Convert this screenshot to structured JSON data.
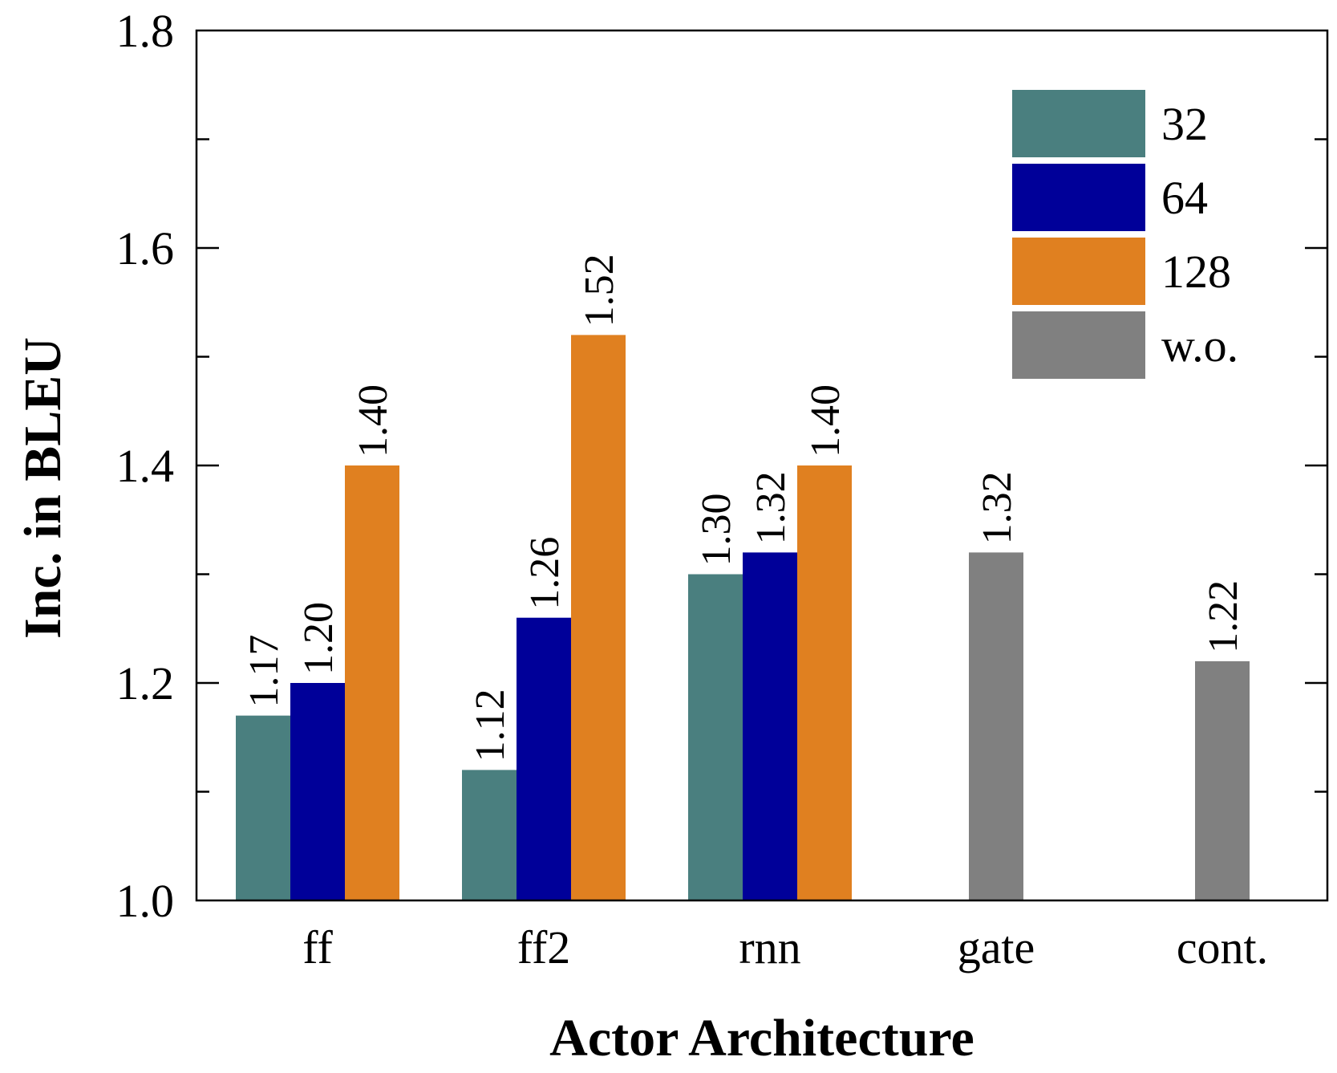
{
  "chart_data": {
    "type": "bar",
    "xlabel": "Actor Architecture",
    "ylabel": "Inc. in BLEU",
    "ylim": [
      1.0,
      1.8
    ],
    "yticks": [
      "1.0",
      "1.2",
      "1.4",
      "1.6",
      "1.8"
    ],
    "categories": [
      "ff",
      "ff2",
      "rnn",
      "gate",
      "cont."
    ],
    "series": [
      {
        "name": "32",
        "color": "#4a7f7f",
        "values": [
          1.17,
          1.12,
          1.3,
          null,
          null
        ],
        "labels": [
          "1.17",
          "1.12",
          "1.30",
          "",
          ""
        ]
      },
      {
        "name": "64",
        "color": "#000099",
        "values": [
          1.2,
          1.26,
          1.32,
          null,
          null
        ],
        "labels": [
          "1.20",
          "1.26",
          "1.32",
          "",
          ""
        ]
      },
      {
        "name": "128",
        "color": "#e08020",
        "values": [
          1.4,
          1.52,
          1.4,
          null,
          null
        ],
        "labels": [
          "1.40",
          "1.52",
          "1.40",
          "",
          ""
        ]
      },
      {
        "name": "w.o.",
        "color": "#808080",
        "values": [
          null,
          null,
          null,
          1.32,
          1.22
        ],
        "labels": [
          "",
          "",
          "",
          "1.32",
          "1.22"
        ]
      }
    ],
    "legend_position": "top-right",
    "grid": false
  }
}
